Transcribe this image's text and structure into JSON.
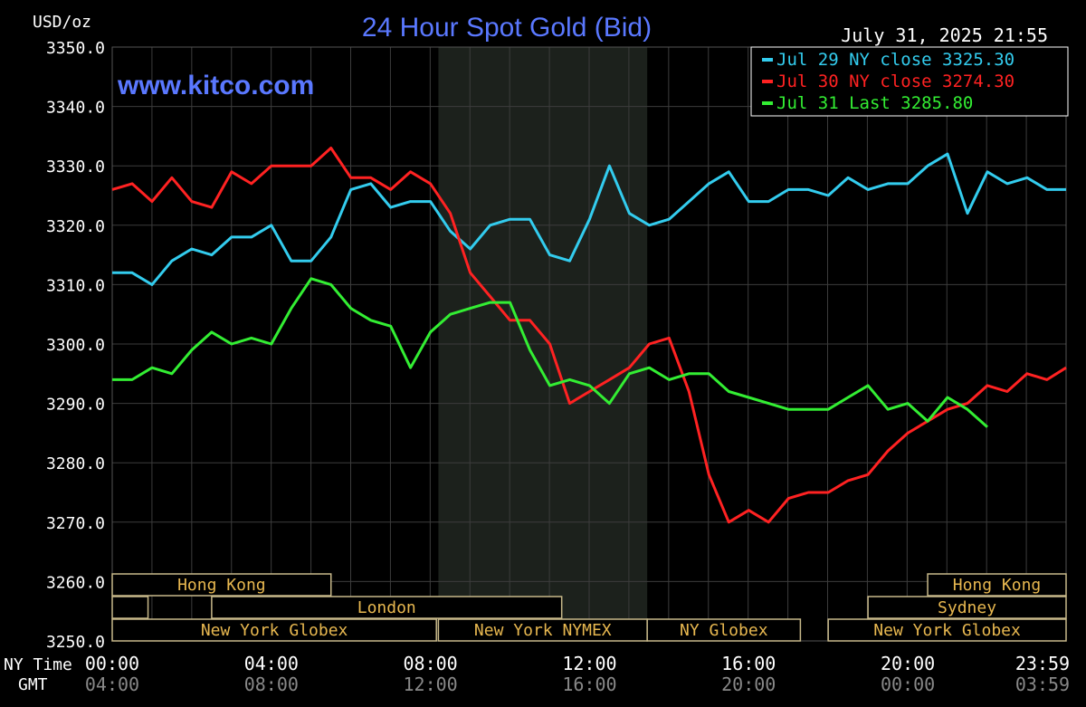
{
  "chart_data": {
    "type": "line",
    "title": "24 Hour Spot Gold (Bid)",
    "website": "www.kitco.com",
    "date_stamp": "July 31, 2025 21:55",
    "y_unit_label": "USD/oz",
    "ylim": [
      3250,
      3350
    ],
    "y_ticks": [
      "3350.0",
      "3340.0",
      "3330.0",
      "3320.0",
      "3310.0",
      "3300.0",
      "3290.0",
      "3280.0",
      "3270.0",
      "3260.0",
      "3250.0"
    ],
    "x_row_labels": [
      "NY Time",
      "GMT"
    ],
    "ny_time_ticks": [
      "00:00",
      "04:00",
      "08:00",
      "12:00",
      "16:00",
      "20:00",
      "23:59"
    ],
    "gmt_ticks": [
      "04:00",
      "08:00",
      "12:00",
      "16:00",
      "20:00",
      "00:00",
      "03:59"
    ],
    "grid": true,
    "legend_position": "top-right",
    "series": [
      {
        "name": "Jul 29 NY close 3325.30",
        "color": "#33ccee",
        "points": [
          [
            0,
            3312
          ],
          [
            0.5,
            3312
          ],
          [
            1,
            3310
          ],
          [
            1.5,
            3314
          ],
          [
            2,
            3316
          ],
          [
            2.5,
            3315
          ],
          [
            3,
            3318
          ],
          [
            3.5,
            3318
          ],
          [
            4,
            3320
          ],
          [
            4.5,
            3314
          ],
          [
            5,
            3314
          ],
          [
            5.5,
            3318
          ],
          [
            6,
            3326
          ],
          [
            6.5,
            3327
          ],
          [
            7,
            3323
          ],
          [
            7.5,
            3324
          ],
          [
            8,
            3324
          ],
          [
            8.5,
            3319
          ],
          [
            9,
            3316
          ],
          [
            9.5,
            3320
          ],
          [
            10,
            3321
          ],
          [
            10.5,
            3321
          ],
          [
            11,
            3315
          ],
          [
            11.5,
            3314
          ],
          [
            12,
            3321
          ],
          [
            12.5,
            3330
          ],
          [
            13,
            3322
          ],
          [
            13.5,
            3320
          ],
          [
            14,
            3321
          ],
          [
            14.5,
            3324
          ],
          [
            15,
            3327
          ],
          [
            15.5,
            3329
          ],
          [
            16,
            3324
          ],
          [
            16.5,
            3324
          ],
          [
            17,
            3326
          ],
          [
            17.5,
            3326
          ],
          [
            18,
            3325
          ],
          [
            18.5,
            3328
          ],
          [
            19,
            3326
          ],
          [
            19.5,
            3327
          ],
          [
            20,
            3327
          ],
          [
            20.5,
            3330
          ],
          [
            21,
            3332
          ],
          [
            21.5,
            3322
          ],
          [
            22,
            3329
          ],
          [
            22.5,
            3327
          ],
          [
            23,
            3328
          ],
          [
            23.5,
            3326
          ],
          [
            23.98,
            3326
          ]
        ]
      },
      {
        "name": "Jul 30 NY close 3274.30",
        "color": "#ff2222",
        "points": [
          [
            0,
            3326
          ],
          [
            0.5,
            3327
          ],
          [
            1,
            3324
          ],
          [
            1.5,
            3328
          ],
          [
            2,
            3324
          ],
          [
            2.5,
            3323
          ],
          [
            3,
            3329
          ],
          [
            3.5,
            3327
          ],
          [
            4,
            3330
          ],
          [
            4.5,
            3330
          ],
          [
            5,
            3330
          ],
          [
            5.5,
            3333
          ],
          [
            6,
            3328
          ],
          [
            6.5,
            3328
          ],
          [
            7,
            3326
          ],
          [
            7.5,
            3329
          ],
          [
            8,
            3327
          ],
          [
            8.5,
            3322
          ],
          [
            9,
            3312
          ],
          [
            9.5,
            3308
          ],
          [
            10,
            3304
          ],
          [
            10.5,
            3304
          ],
          [
            11,
            3300
          ],
          [
            11.5,
            3290
          ],
          [
            12,
            3292
          ],
          [
            12.5,
            3294
          ],
          [
            13,
            3296
          ],
          [
            13.5,
            3300
          ],
          [
            14,
            3301
          ],
          [
            14.5,
            3292
          ],
          [
            15,
            3278
          ],
          [
            15.5,
            3270
          ],
          [
            16,
            3272
          ],
          [
            16.5,
            3270
          ],
          [
            17,
            3274
          ],
          [
            17.5,
            3275
          ],
          [
            18,
            3275
          ],
          [
            18.5,
            3277
          ],
          [
            19,
            3278
          ],
          [
            19.5,
            3282
          ],
          [
            20,
            3285
          ],
          [
            20.5,
            3287
          ],
          [
            21,
            3289
          ],
          [
            21.5,
            3290
          ],
          [
            22,
            3293
          ],
          [
            22.5,
            3292
          ],
          [
            23,
            3295
          ],
          [
            23.5,
            3294
          ],
          [
            23.98,
            3296
          ]
        ]
      },
      {
        "name": "Jul 31 Last 3285.80",
        "color": "#33ee33",
        "points": [
          [
            0,
            3294
          ],
          [
            0.5,
            3294
          ],
          [
            1,
            3296
          ],
          [
            1.5,
            3295
          ],
          [
            2,
            3299
          ],
          [
            2.5,
            3302
          ],
          [
            3,
            3300
          ],
          [
            3.5,
            3301
          ],
          [
            4,
            3300
          ],
          [
            4.5,
            3306
          ],
          [
            5,
            3311
          ],
          [
            5.5,
            3310
          ],
          [
            6,
            3306
          ],
          [
            6.5,
            3304
          ],
          [
            7,
            3303
          ],
          [
            7.5,
            3296
          ],
          [
            8,
            3302
          ],
          [
            8.5,
            3305
          ],
          [
            9,
            3306
          ],
          [
            9.5,
            3307
          ],
          [
            10,
            3307
          ],
          [
            10.5,
            3299
          ],
          [
            11,
            3293
          ],
          [
            11.5,
            3294
          ],
          [
            12,
            3293
          ],
          [
            12.5,
            3290
          ],
          [
            13,
            3295
          ],
          [
            13.5,
            3296
          ],
          [
            14,
            3294
          ],
          [
            14.5,
            3295
          ],
          [
            15,
            3295
          ],
          [
            15.5,
            3292
          ],
          [
            16,
            3291
          ],
          [
            16.5,
            3290
          ],
          [
            17,
            3289
          ],
          [
            17.5,
            3289
          ],
          [
            18,
            3289
          ],
          [
            18.5,
            3291
          ],
          [
            19,
            3293
          ],
          [
            19.5,
            3289
          ],
          [
            20,
            3290
          ],
          [
            20.5,
            3287
          ],
          [
            21,
            3291
          ],
          [
            21.5,
            3289
          ],
          [
            22,
            3286
          ]
        ]
      }
    ],
    "sessions": [
      {
        "name": "Hong Kong",
        "row": 0,
        "start": 0,
        "end": 5.5
      },
      {
        "name": "London",
        "row": 1,
        "start": 2.5,
        "end": 11.3
      },
      {
        "name": "New York Globex",
        "row": 2,
        "start": 0,
        "end": 8.15
      },
      {
        "name": "New York NYMEX",
        "row": 2,
        "start": 8.2,
        "end": 13.45
      },
      {
        "name": "NY Globex",
        "row": 2,
        "start": 13.45,
        "end": 17.3
      },
      {
        "name": "Hong Kong",
        "row": 0,
        "start": 20.5,
        "end": 23.98
      },
      {
        "name": "Sydney",
        "row": 1,
        "start": 19.0,
        "end": 23.98
      },
      {
        "name": "New York Globex",
        "row": 2,
        "start": 18.0,
        "end": 23.98
      }
    ],
    "extra_session_boxes": [
      {
        "row": 1,
        "start": 0,
        "end": 0.9
      }
    ],
    "shaded_range": [
      8.2,
      13.45
    ]
  }
}
